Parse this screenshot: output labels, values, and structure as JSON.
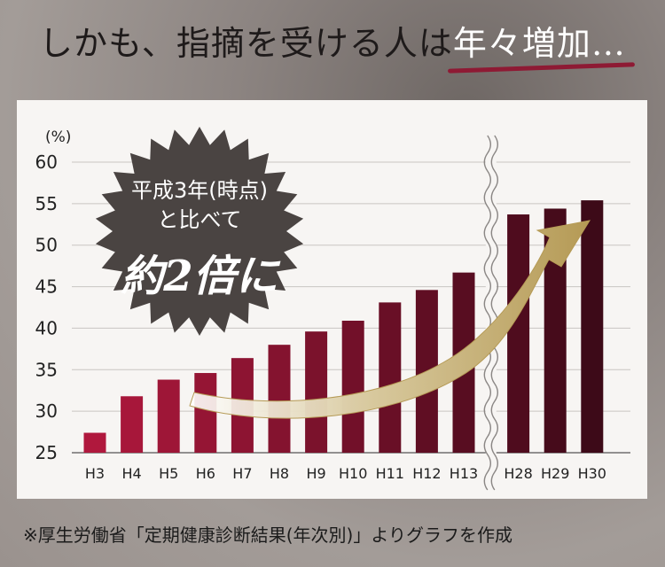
{
  "headline": {
    "lead": "しかも、指摘を受ける人は",
    "accent": "年々増加…"
  },
  "callout": {
    "line1": "平成3年(時点)",
    "line2": "と比べて",
    "line3": "約2倍に"
  },
  "source_note": "※厚生労働省「定期健康診断結果(年次別)」よりグラフを作成",
  "colors": {
    "bar_start": "#b0183d",
    "bar_end": "#3d0a18",
    "arrow": "#c4b07a",
    "starburst": "#4a4442"
  },
  "chart_data": {
    "type": "bar",
    "unit_label": "(%)",
    "categories": [
      "H3",
      "H4",
      "H5",
      "H6",
      "H7",
      "H8",
      "H9",
      "H10",
      "H11",
      "H12",
      "H13",
      "H28",
      "H29",
      "H30"
    ],
    "values": [
      27.4,
      31.8,
      33.8,
      34.6,
      36.4,
      38.0,
      39.6,
      40.9,
      43.1,
      44.6,
      46.7,
      53.7,
      54.4,
      55.4
    ],
    "ylim": [
      25,
      60
    ],
    "yticks": [
      25,
      30,
      35,
      40,
      45,
      50,
      55,
      60
    ],
    "axis_break_after": "H13",
    "grid": true
  }
}
